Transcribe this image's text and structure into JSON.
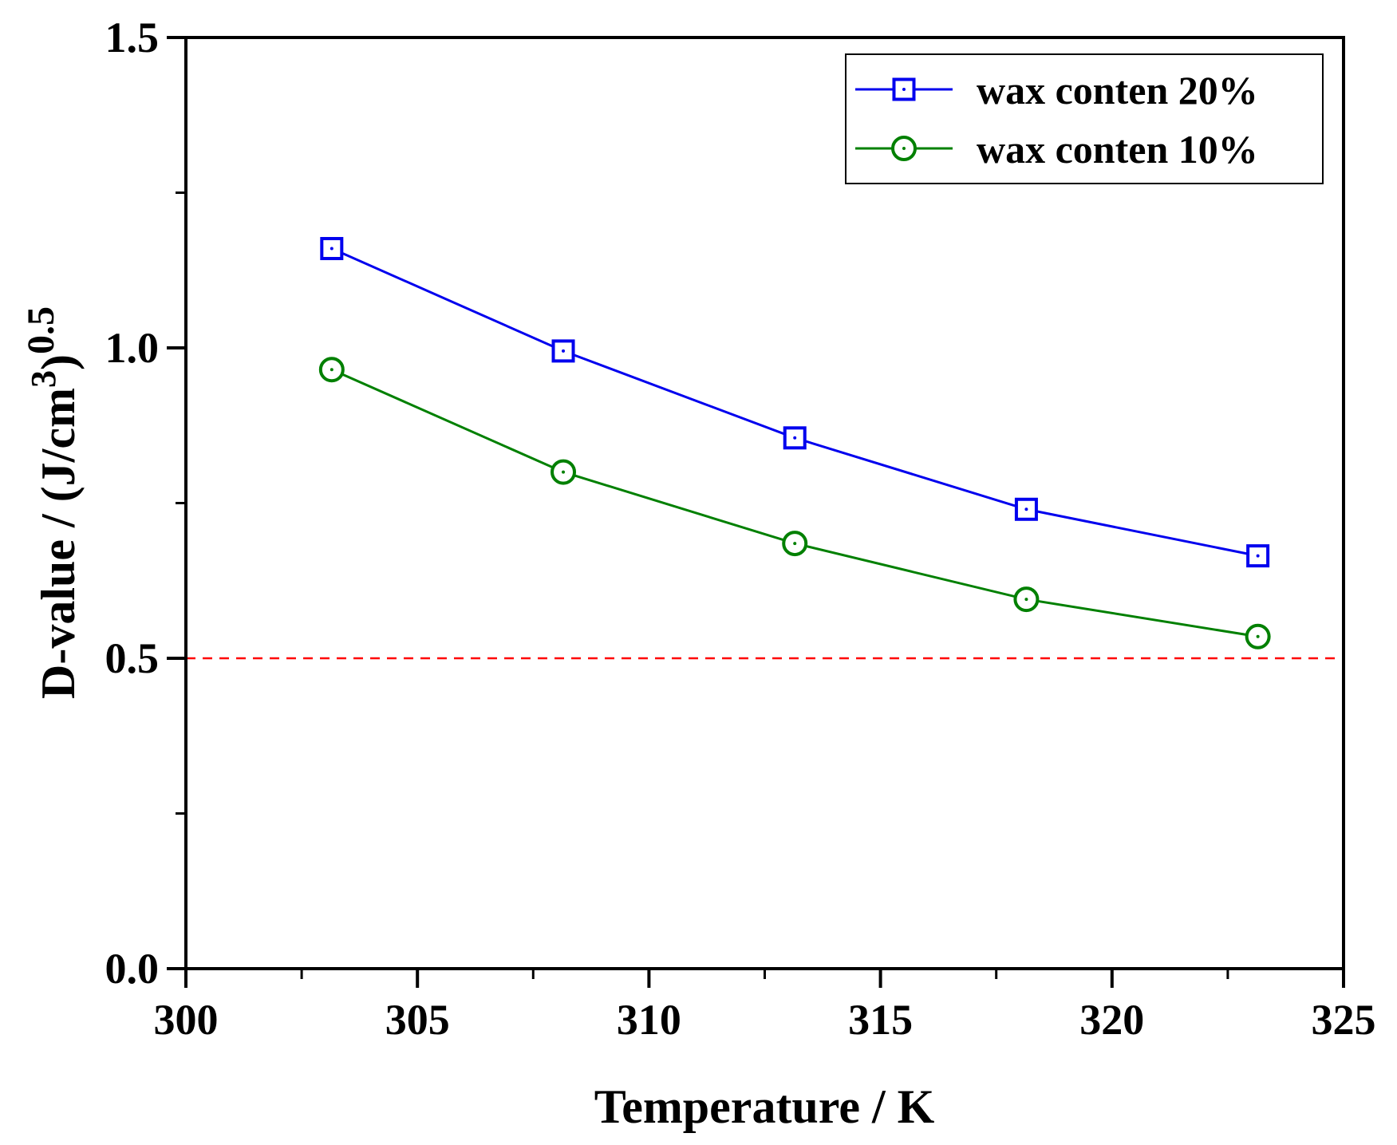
{
  "chart_data": {
    "type": "line",
    "title": "",
    "xlabel": "Temperature / K",
    "ylabel": {
      "main": "D-value / (J/cm",
      "sup1": "3",
      "close": ")",
      "sup2": "0.5"
    },
    "xlim": [
      300,
      325
    ],
    "ylim": [
      0,
      1.5
    ],
    "x_ticks": [
      300,
      305,
      310,
      315,
      320,
      325
    ],
    "x_tick_labels": [
      "300",
      "305",
      "310",
      "315",
      "320",
      "325"
    ],
    "y_ticks": [
      0,
      0.5,
      1.0,
      1.5
    ],
    "y_tick_labels": [
      "0.0",
      "0.5",
      "1.0",
      "1.5"
    ],
    "y_minor_ticks": [
      0.25,
      0.75,
      1.25
    ],
    "x_minor_ticks": [
      302.5,
      307.5,
      312.5,
      317.5,
      322.5
    ],
    "x": [
      303.15,
      308.15,
      313.15,
      318.15,
      323.15
    ],
    "series": [
      {
        "name": "wax conten 20%",
        "marker": "square",
        "color": "#0000ee",
        "values": [
          1.16,
          0.995,
          0.855,
          0.74,
          0.665
        ]
      },
      {
        "name": "wax conten 10%",
        "marker": "circle",
        "color": "#008000",
        "values": [
          0.965,
          0.8,
          0.685,
          0.595,
          0.535
        ]
      }
    ],
    "reference_line": {
      "y": 0.5,
      "style": "dashed",
      "color": "#ff0000"
    },
    "legend": {
      "position": "top-right"
    }
  }
}
